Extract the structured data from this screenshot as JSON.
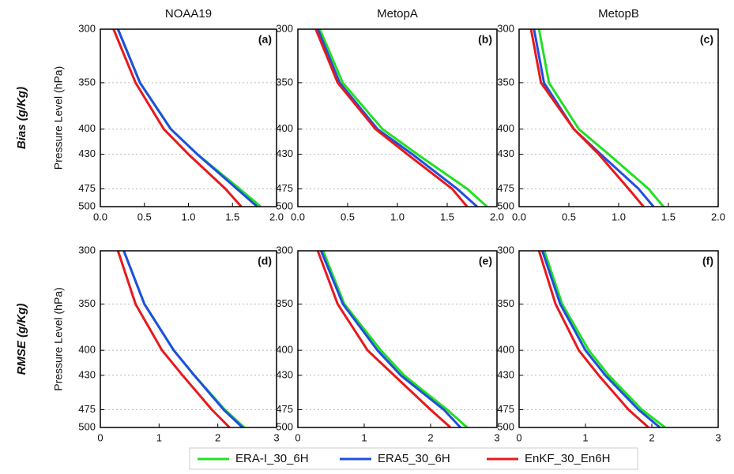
{
  "chart_data": [
    {
      "type": "line",
      "title": "NOAA19",
      "panel_label": "(a)",
      "ylabel": "Pressure Level (hPa)",
      "row_label": "Bias (g/Kg)",
      "y": [
        300,
        350,
        400,
        430,
        475,
        500
      ],
      "series": [
        {
          "name": "ERA-I_30_6H",
          "color": "#22e022",
          "values": [
            0.2,
            0.45,
            0.8,
            1.1,
            1.58,
            1.82
          ]
        },
        {
          "name": "ERA5_30_6H",
          "color": "#1f4fe0",
          "values": [
            0.2,
            0.45,
            0.8,
            1.1,
            1.55,
            1.78
          ]
        },
        {
          "name": "EnKF_30_En6H",
          "color": "#e8191c",
          "values": [
            0.15,
            0.4,
            0.72,
            1.0,
            1.42,
            1.6
          ]
        }
      ],
      "xlim": [
        0,
        2
      ],
      "xticks": [
        {
          "value": 0,
          "label": "0.0"
        },
        {
          "value": 0.5,
          "label": "0.5"
        },
        {
          "value": 1,
          "label": "1.0"
        },
        {
          "value": 1.5,
          "label": "1.5"
        },
        {
          "value": 2,
          "label": "2.0"
        }
      ],
      "ylim": [
        300,
        500
      ],
      "yticks": [
        300,
        350,
        400,
        430,
        475,
        500
      ],
      "yscale": "log",
      "y_inverted": true,
      "grid": "y"
    },
    {
      "type": "line",
      "title": "MetopA",
      "panel_label": "(b)",
      "y": [
        300,
        350,
        400,
        430,
        475,
        500
      ],
      "series": [
        {
          "color": "#22e022",
          "values": [
            0.22,
            0.45,
            0.85,
            1.2,
            1.7,
            1.9
          ]
        },
        {
          "color": "#1f4fe0",
          "values": [
            0.2,
            0.42,
            0.8,
            1.15,
            1.6,
            1.8
          ]
        },
        {
          "color": "#e8191c",
          "values": [
            0.18,
            0.4,
            0.78,
            1.1,
            1.55,
            1.7
          ]
        }
      ],
      "xlim": [
        0,
        2
      ],
      "xticks": [
        {
          "value": 0,
          "label": "0.0"
        },
        {
          "value": 0.5,
          "label": "0.5"
        },
        {
          "value": 1,
          "label": "1.0"
        },
        {
          "value": 1.5,
          "label": "1.5"
        },
        {
          "value": 2,
          "label": "2.0"
        }
      ],
      "ylim": [
        300,
        500
      ],
      "yticks": [
        300,
        350,
        400,
        430,
        475,
        500
      ],
      "yscale": "log",
      "y_inverted": true,
      "grid": "y"
    },
    {
      "type": "line",
      "title": "MetopB",
      "panel_label": "(c)",
      "y": [
        300,
        350,
        400,
        430,
        475,
        500
      ],
      "series": [
        {
          "color": "#22e022",
          "values": [
            0.2,
            0.3,
            0.6,
            0.9,
            1.3,
            1.45
          ]
        },
        {
          "color": "#1f4fe0",
          "values": [
            0.15,
            0.25,
            0.55,
            0.82,
            1.2,
            1.35
          ]
        },
        {
          "color": "#e8191c",
          "values": [
            0.12,
            0.22,
            0.55,
            0.8,
            1.1,
            1.25
          ]
        }
      ],
      "xlim": [
        0,
        2
      ],
      "xticks": [
        {
          "value": 0,
          "label": "0.0"
        },
        {
          "value": 0.5,
          "label": "0.5"
        },
        {
          "value": 1,
          "label": "1.0"
        },
        {
          "value": 1.5,
          "label": "1.5"
        },
        {
          "value": 2,
          "label": "2.0"
        }
      ],
      "ylim": [
        300,
        500
      ],
      "yticks": [
        300,
        350,
        400,
        430,
        475,
        500
      ],
      "yscale": "log",
      "y_inverted": true,
      "grid": "y"
    },
    {
      "type": "line",
      "panel_label": "(d)",
      "ylabel": "Pressure Level (hPa)",
      "row_label": "RMSE (g/Kg)",
      "y": [
        300,
        350,
        400,
        430,
        475,
        500
      ],
      "series": [
        {
          "color": "#22e022",
          "values": [
            0.4,
            0.75,
            1.25,
            1.6,
            2.12,
            2.45
          ]
        },
        {
          "color": "#1f4fe0",
          "values": [
            0.4,
            0.75,
            1.25,
            1.6,
            2.1,
            2.42
          ]
        },
        {
          "color": "#e8191c",
          "values": [
            0.3,
            0.6,
            1.05,
            1.4,
            1.9,
            2.2
          ]
        }
      ],
      "xlim": [
        0,
        3
      ],
      "xticks": [
        0,
        1,
        2,
        3
      ],
      "ylim": [
        300,
        500
      ],
      "yticks": [
        300,
        350,
        400,
        430,
        475,
        500
      ],
      "yscale": "log",
      "y_inverted": true,
      "grid": "y"
    },
    {
      "type": "line",
      "panel_label": "(e)",
      "y": [
        300,
        350,
        400,
        430,
        475,
        500
      ],
      "series": [
        {
          "color": "#22e022",
          "values": [
            0.38,
            0.7,
            1.25,
            1.6,
            2.25,
            2.55
          ]
        },
        {
          "color": "#1f4fe0",
          "values": [
            0.35,
            0.68,
            1.2,
            1.55,
            2.2,
            2.45
          ]
        },
        {
          "color": "#e8191c",
          "values": [
            0.3,
            0.6,
            1.05,
            1.45,
            2.0,
            2.3
          ]
        }
      ],
      "xlim": [
        0,
        3
      ],
      "xticks": [
        0,
        1,
        2,
        3
      ],
      "ylim": [
        300,
        500
      ],
      "yticks": [
        300,
        350,
        400,
        430,
        475,
        500
      ],
      "yscale": "log",
      "y_inverted": true,
      "grid": "y"
    },
    {
      "type": "line",
      "panel_label": "(f)",
      "y": [
        300,
        350,
        400,
        430,
        475,
        500
      ],
      "series": [
        {
          "color": "#22e022",
          "values": [
            0.38,
            0.65,
            1.05,
            1.35,
            1.85,
            2.2
          ]
        },
        {
          "color": "#1f4fe0",
          "values": [
            0.35,
            0.62,
            1.0,
            1.3,
            1.8,
            2.12
          ]
        },
        {
          "color": "#e8191c",
          "values": [
            0.3,
            0.55,
            0.9,
            1.2,
            1.65,
            1.95
          ]
        }
      ],
      "xlim": [
        0,
        3
      ],
      "xticks": [
        0,
        1,
        2,
        3
      ],
      "ylim": [
        300,
        500
      ],
      "yticks": [
        300,
        350,
        400,
        430,
        475,
        500
      ],
      "yscale": "log",
      "y_inverted": true,
      "grid": "y"
    }
  ]
}
